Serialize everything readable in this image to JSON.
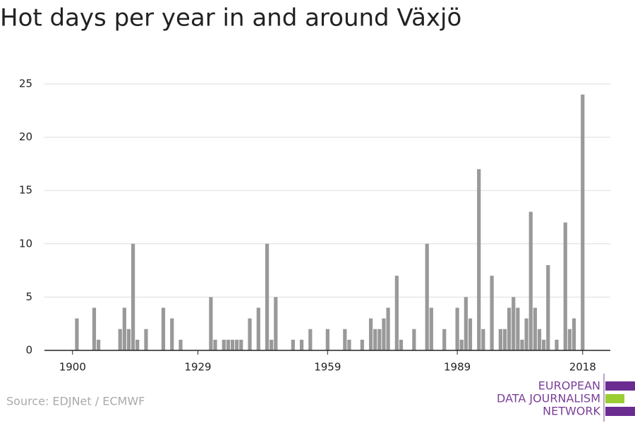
{
  "chart_data": {
    "type": "bar",
    "title": "Hot days per year in and around Växjö",
    "source": "Source: EDJNet / ECMWF",
    "logo": [
      "EUROPEAN",
      "DATA JOURNALISM",
      "NETWORK"
    ],
    "color": "#999999",
    "x": [
      1900,
      1901,
      1902,
      1903,
      1904,
      1905,
      1906,
      1907,
      1908,
      1909,
      1910,
      1911,
      1912,
      1913,
      1914,
      1915,
      1916,
      1917,
      1918,
      1919,
      1920,
      1921,
      1922,
      1923,
      1924,
      1925,
      1926,
      1927,
      1928,
      1929,
      1930,
      1931,
      1932,
      1933,
      1934,
      1935,
      1936,
      1937,
      1938,
      1939,
      1940,
      1941,
      1942,
      1943,
      1944,
      1945,
      1946,
      1947,
      1948,
      1949,
      1950,
      1951,
      1952,
      1953,
      1954,
      1955,
      1956,
      1957,
      1958,
      1959,
      1960,
      1961,
      1962,
      1963,
      1964,
      1965,
      1966,
      1967,
      1968,
      1969,
      1970,
      1971,
      1972,
      1973,
      1974,
      1975,
      1976,
      1977,
      1978,
      1979,
      1980,
      1981,
      1982,
      1983,
      1984,
      1985,
      1986,
      1987,
      1988,
      1989,
      1990,
      1991,
      1992,
      1993,
      1994,
      1995,
      1996,
      1997,
      1998,
      1999,
      2000,
      2001,
      2002,
      2003,
      2004,
      2005,
      2006,
      2007,
      2008,
      2009,
      2010,
      2011,
      2012,
      2013,
      2014,
      2015,
      2016,
      2017,
      2018
    ],
    "values": [
      0,
      3,
      0,
      0,
      0,
      4,
      1,
      0,
      0,
      0,
      0,
      2,
      4,
      2,
      10,
      1,
      0,
      2,
      0,
      0,
      0,
      4,
      0,
      3,
      0,
      1,
      0,
      0,
      0,
      0,
      0,
      0,
      5,
      1,
      0,
      1,
      1,
      1,
      1,
      1,
      0,
      3,
      0,
      4,
      0,
      10,
      1,
      5,
      0,
      0,
      0,
      1,
      0,
      1,
      0,
      2,
      0,
      0,
      0,
      2,
      0,
      0,
      0,
      2,
      1,
      0,
      0,
      1,
      0,
      3,
      2,
      2,
      3,
      4,
      0,
      7,
      1,
      0,
      0,
      2,
      0,
      0,
      10,
      4,
      0,
      0,
      2,
      0,
      0,
      4,
      1,
      5,
      3,
      0,
      17,
      2,
      0,
      7,
      0,
      2,
      2,
      4,
      5,
      4,
      1,
      3,
      13,
      4,
      2,
      1,
      8,
      0,
      1,
      0,
      12,
      2,
      3,
      0,
      24
    ],
    "xlim": [
      1893.5,
      2024.4
    ],
    "xticks": [
      1900,
      1929,
      1959,
      1989,
      2018
    ],
    "ylim": [
      0,
      25
    ],
    "yticks": [
      0,
      5,
      10,
      15,
      20,
      25
    ],
    "grid": true
  }
}
